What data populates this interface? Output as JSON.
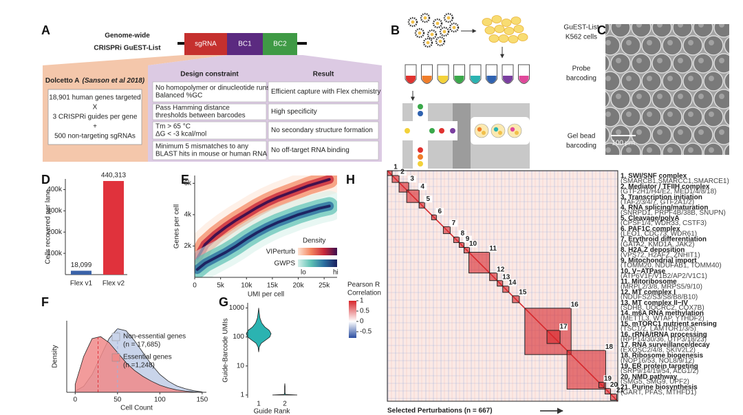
{
  "figure": {
    "panel_labels": [
      "A",
      "B",
      "C",
      "D",
      "E",
      "F",
      "G",
      "H"
    ]
  },
  "panel_a": {
    "title": [
      "Genome-wide",
      "CRISPRi GuEST-List"
    ],
    "construct": [
      "sgRNA",
      "BC1",
      "BC2"
    ],
    "library": {
      "name": "Dolcetto A",
      "citation": "(Sanson et al 2018)",
      "lines": [
        "18,901 human genes targeted",
        "X",
        "3 CRISPRi guides per gene",
        "+",
        "500 non-targeting sgRNAs"
      ]
    },
    "table": {
      "header": [
        "Design constraint",
        "Result"
      ],
      "rows": [
        [
          [
            "No homopolymer or dinucleotide runs",
            "Balanced %GC"
          ],
          [
            "Efficient capture with Flex chemistry"
          ]
        ],
        [
          [
            "Pass Hamming distance",
            "thresholds between barcodes"
          ],
          [
            "High specificity"
          ]
        ],
        [
          [
            "Tm > 65 °C",
            "ΔG < -3 kcal/mol"
          ],
          [
            "No secondary structure formation"
          ]
        ],
        [
          [
            "Minimum 5 mismatches to any",
            "BLAST hits in mouse or human RNA"
          ],
          [
            "No off-target RNA binding"
          ]
        ]
      ]
    }
  },
  "panel_b": {
    "steps": [
      [
        "GuEST-List",
        "K562 cells"
      ],
      [
        "Probe",
        "barcoding"
      ],
      [
        "Gel bead",
        "barcoding"
      ]
    ]
  },
  "panel_c": {
    "scale_bar": "100 µm"
  },
  "chart_data": [
    {
      "type": "bar",
      "ylabel": "Cells recovered per lane",
      "categories": [
        "Flex v1",
        "Flex v2"
      ],
      "values": [
        18099,
        440313
      ],
      "value_labels": [
        "18,099",
        "440,313"
      ],
      "colors": [
        "#3a62a8",
        "#e0323c"
      ],
      "ylim": [
        0,
        450000
      ],
      "yticks": [
        {
          "value": 100000,
          "label": "100k"
        },
        {
          "value": 200000,
          "label": "200k"
        },
        {
          "value": 300000,
          "label": "300k"
        },
        {
          "value": 400000,
          "label": "400k"
        }
      ]
    },
    {
      "type": "density",
      "xlabel": "UMI per cell",
      "ylabel": "Genes per cell",
      "legend_title": "Density",
      "legend_ends": [
        "lo",
        "hi"
      ],
      "x": [
        500,
        2000,
        4000,
        6000,
        8000,
        10000,
        12000,
        14000,
        16000,
        18000,
        20000,
        22000,
        24000,
        26000
      ],
      "series": [
        {
          "name": "VIPerturb",
          "colors": [
            "#fde3d3",
            "#f3845e",
            "#c8283a",
            "#3b0f4e"
          ],
          "values": [
            1200,
            2100,
            2700,
            3200,
            3650,
            4050,
            4450,
            4800,
            5100,
            5350,
            5600,
            5850,
            6050,
            6250
          ]
        },
        {
          "name": "GWPS",
          "colors": [
            "#d6f0ea",
            "#5ec2b4",
            "#2a6fa0",
            "#1b1f5e"
          ],
          "values": [
            500,
            900,
            1250,
            1600,
            2000,
            2450,
            2850,
            3200,
            3500,
            3750,
            4000,
            4200,
            4400,
            4550
          ]
        }
      ],
      "xlim": [
        0,
        27500
      ],
      "ylim": [
        0,
        6500
      ],
      "xticks": [
        0,
        {
          "value": 5000,
          "label": "5k"
        },
        {
          "value": 10000,
          "label": "10k"
        },
        {
          "value": 15000,
          "label": "15k"
        },
        {
          "value": 20000,
          "label": "20k"
        },
        {
          "value": 25000,
          "label": "25k"
        }
      ],
      "yticks": [
        {
          "value": 2000,
          "label": "2k"
        },
        {
          "value": 4000,
          "label": "4k"
        },
        {
          "value": 6000,
          "label": "6k"
        }
      ]
    },
    {
      "type": "area",
      "xlabel": "Cell Count",
      "ylabel": "Density",
      "x": [
        0,
        10,
        20,
        30,
        40,
        50,
        60,
        70,
        80,
        90,
        100,
        110,
        120,
        130,
        140,
        150
      ],
      "series": [
        {
          "name": "Non-essential genes",
          "n_label": "(n = 17,685)",
          "color": "#c9d4ea",
          "median": 50,
          "values": [
            0.3,
            1.5,
            4.5,
            9,
            13.5,
            16,
            15.5,
            13,
            10,
            7,
            4.5,
            2.8,
            1.6,
            0.9,
            0.4,
            0.1
          ]
        },
        {
          "name": "Essential genes",
          "n_label": "(n =1,248)",
          "color": "#f08a8a",
          "median": 27,
          "values": [
            2,
            9,
            13.5,
            14,
            12.5,
            10,
            7.5,
            5.5,
            4,
            2.8,
            1.8,
            1.1,
            0.6,
            0.3,
            0.1,
            0
          ]
        }
      ],
      "xlim": [
        -10,
        155
      ],
      "ylim": [
        0,
        18
      ],
      "xticks": [
        0,
        50,
        100,
        150
      ]
    },
    {
      "type": "violin",
      "xlabel": "Guide Rank",
      "ylabel": "Guide-Barcode UMIs",
      "categories": [
        "1",
        "2"
      ],
      "colors": [
        "#2bb3b1",
        "#2bb3b1"
      ],
      "series": [
        {
          "y": [
            30,
            45,
            60,
            80,
            100,
            130,
            170,
            220,
            300,
            450,
            700,
            1000
          ],
          "widths": [
            0,
            0.05,
            0.2,
            0.6,
            0.9,
            1,
            0.85,
            0.5,
            0.25,
            0.1,
            0.04,
            0
          ]
        },
        {
          "y": [
            1,
            1.05,
            1.2,
            1.5,
            2,
            2.5
          ],
          "widths": [
            1,
            0.05,
            0.02,
            0.02,
            0.02,
            0
          ]
        }
      ],
      "log_y": true,
      "ylim": [
        0.8,
        1500
      ],
      "yticks": [
        1,
        10,
        100,
        1000
      ]
    },
    {
      "type": "heatmap",
      "xlabel": "Selected Perturbations (n = 667)",
      "n": 667,
      "colorbar_title": [
        "Pearson R",
        "Correlation"
      ],
      "clim": [
        -0.8,
        1
      ],
      "cticks": [
        1,
        0.5,
        0,
        -0.5
      ],
      "colors": [
        "#2b4da0",
        "#ffffff",
        "#d7262b"
      ],
      "clusters": [
        {
          "id": 1,
          "list_label": "1. SWI/SNF complex",
          "genes": "(SMARCB1,SMARCC1,SMARCE1)",
          "start": 0,
          "end": 14
        },
        {
          "id": 2,
          "list_label": "2. Mediator / TFIIH complex",
          "genes": "(GTF2H1/H4/E2, MED1/4/8/18)",
          "start": 14,
          "end": 34
        },
        {
          "id": 3,
          "list_label": "3. Transcription initiation",
          "genes": "(TAF2/3/4/7, GTF2A1/2)",
          "start": 34,
          "end": 62
        },
        {
          "id": 4,
          "list_label": "4. RNA splicing/maturation",
          "genes": "(SNRPD1, PRPF4B/38B, SNUPN)",
          "start": 56,
          "end": 92
        },
        {
          "id": 5,
          "list_label": "5. Cleavage/polyA",
          "genes": "(CPSF1/4, WDR33, CSTF3)",
          "start": 92,
          "end": 108
        },
        {
          "id": 6,
          "list_label": "6. PAF1C complex",
          "genes": "(LEO1, CDC73, WDR61)",
          "start": 128,
          "end": 142
        },
        {
          "id": 7,
          "list_label": "7. Erythroid differentiation",
          "genes": "(GATA2, KMD1A, JAK2)",
          "start": 162,
          "end": 182
        },
        {
          "id": 8,
          "list_label": "8. H2A.Z deposition",
          "genes": "(VPS72, H2AFZ, ZNHIT1)",
          "start": 192,
          "end": 208
        },
        {
          "id": 9,
          "list_label": "9. Mitochondrial import",
          "genes": "(TOMM20, NDUFAB1, TOMM40)",
          "start": 208,
          "end": 222
        },
        {
          "id": 10,
          "list_label": "10. V−ATPase",
          "genes": "(ATP6V1F/V1B2/AP2/V1C1)",
          "start": 222,
          "end": 238
        },
        {
          "id": 11,
          "list_label": "11. Mitoribosome",
          "genes": "(MRPL2/3/8, MRPS5/9/10)",
          "start": 236,
          "end": 296
        },
        {
          "id": 12,
          "list_label": "12. MT complex I",
          "genes": "(NDUFS2/S3/S8/B8/B10)",
          "start": 296,
          "end": 318
        },
        {
          "id": 13,
          "list_label": "13. MT complex II−IV",
          "genes": "(SDHB, UQCRC2, COX7B)",
          "start": 318,
          "end": 334
        },
        {
          "id": 14,
          "list_label": "14. m6A RNA methylation",
          "genes": "(METTL3, WTAP, YTHDF2)",
          "start": 334,
          "end": 352
        },
        {
          "id": 15,
          "list_label": "15. mTORC1 nutrient sensing",
          "genes": "(TSC1/2, LAMTOR1/3/5)",
          "start": 362,
          "end": 382
        },
        {
          "id": 16,
          "list_label": "16. rRNA/tRNA processing",
          "genes": "(RPP14/30/36, UTP3/18/23)",
          "start": 398,
          "end": 532
        },
        {
          "id": 17,
          "list_label": "17. RNA surveillance/decay",
          "genes": "(EXOSC2/4/8, SKIV2L2)",
          "start": 462,
          "end": 500
        },
        {
          "id": 18,
          "list_label": "18. Ribosome biogenesis",
          "genes": "(NOP16/53, NOL8/9/12)",
          "start": 520,
          "end": 632
        },
        {
          "id": 19,
          "list_label": "19. ER protein targeting",
          "genes": "(SRP9/14/19/54, ALG1/2)",
          "start": 612,
          "end": 628
        },
        {
          "id": 20,
          "list_label": "20. NMD pathway",
          "genes": "(SMG5, SMG9, UPF2)",
          "start": 630,
          "end": 646
        },
        {
          "id": 21,
          "list_label": "21. Purine biosynthesis",
          "genes": "(GART, PFAS, MTHFD1)",
          "start": 646,
          "end": 664
        }
      ]
    }
  ]
}
